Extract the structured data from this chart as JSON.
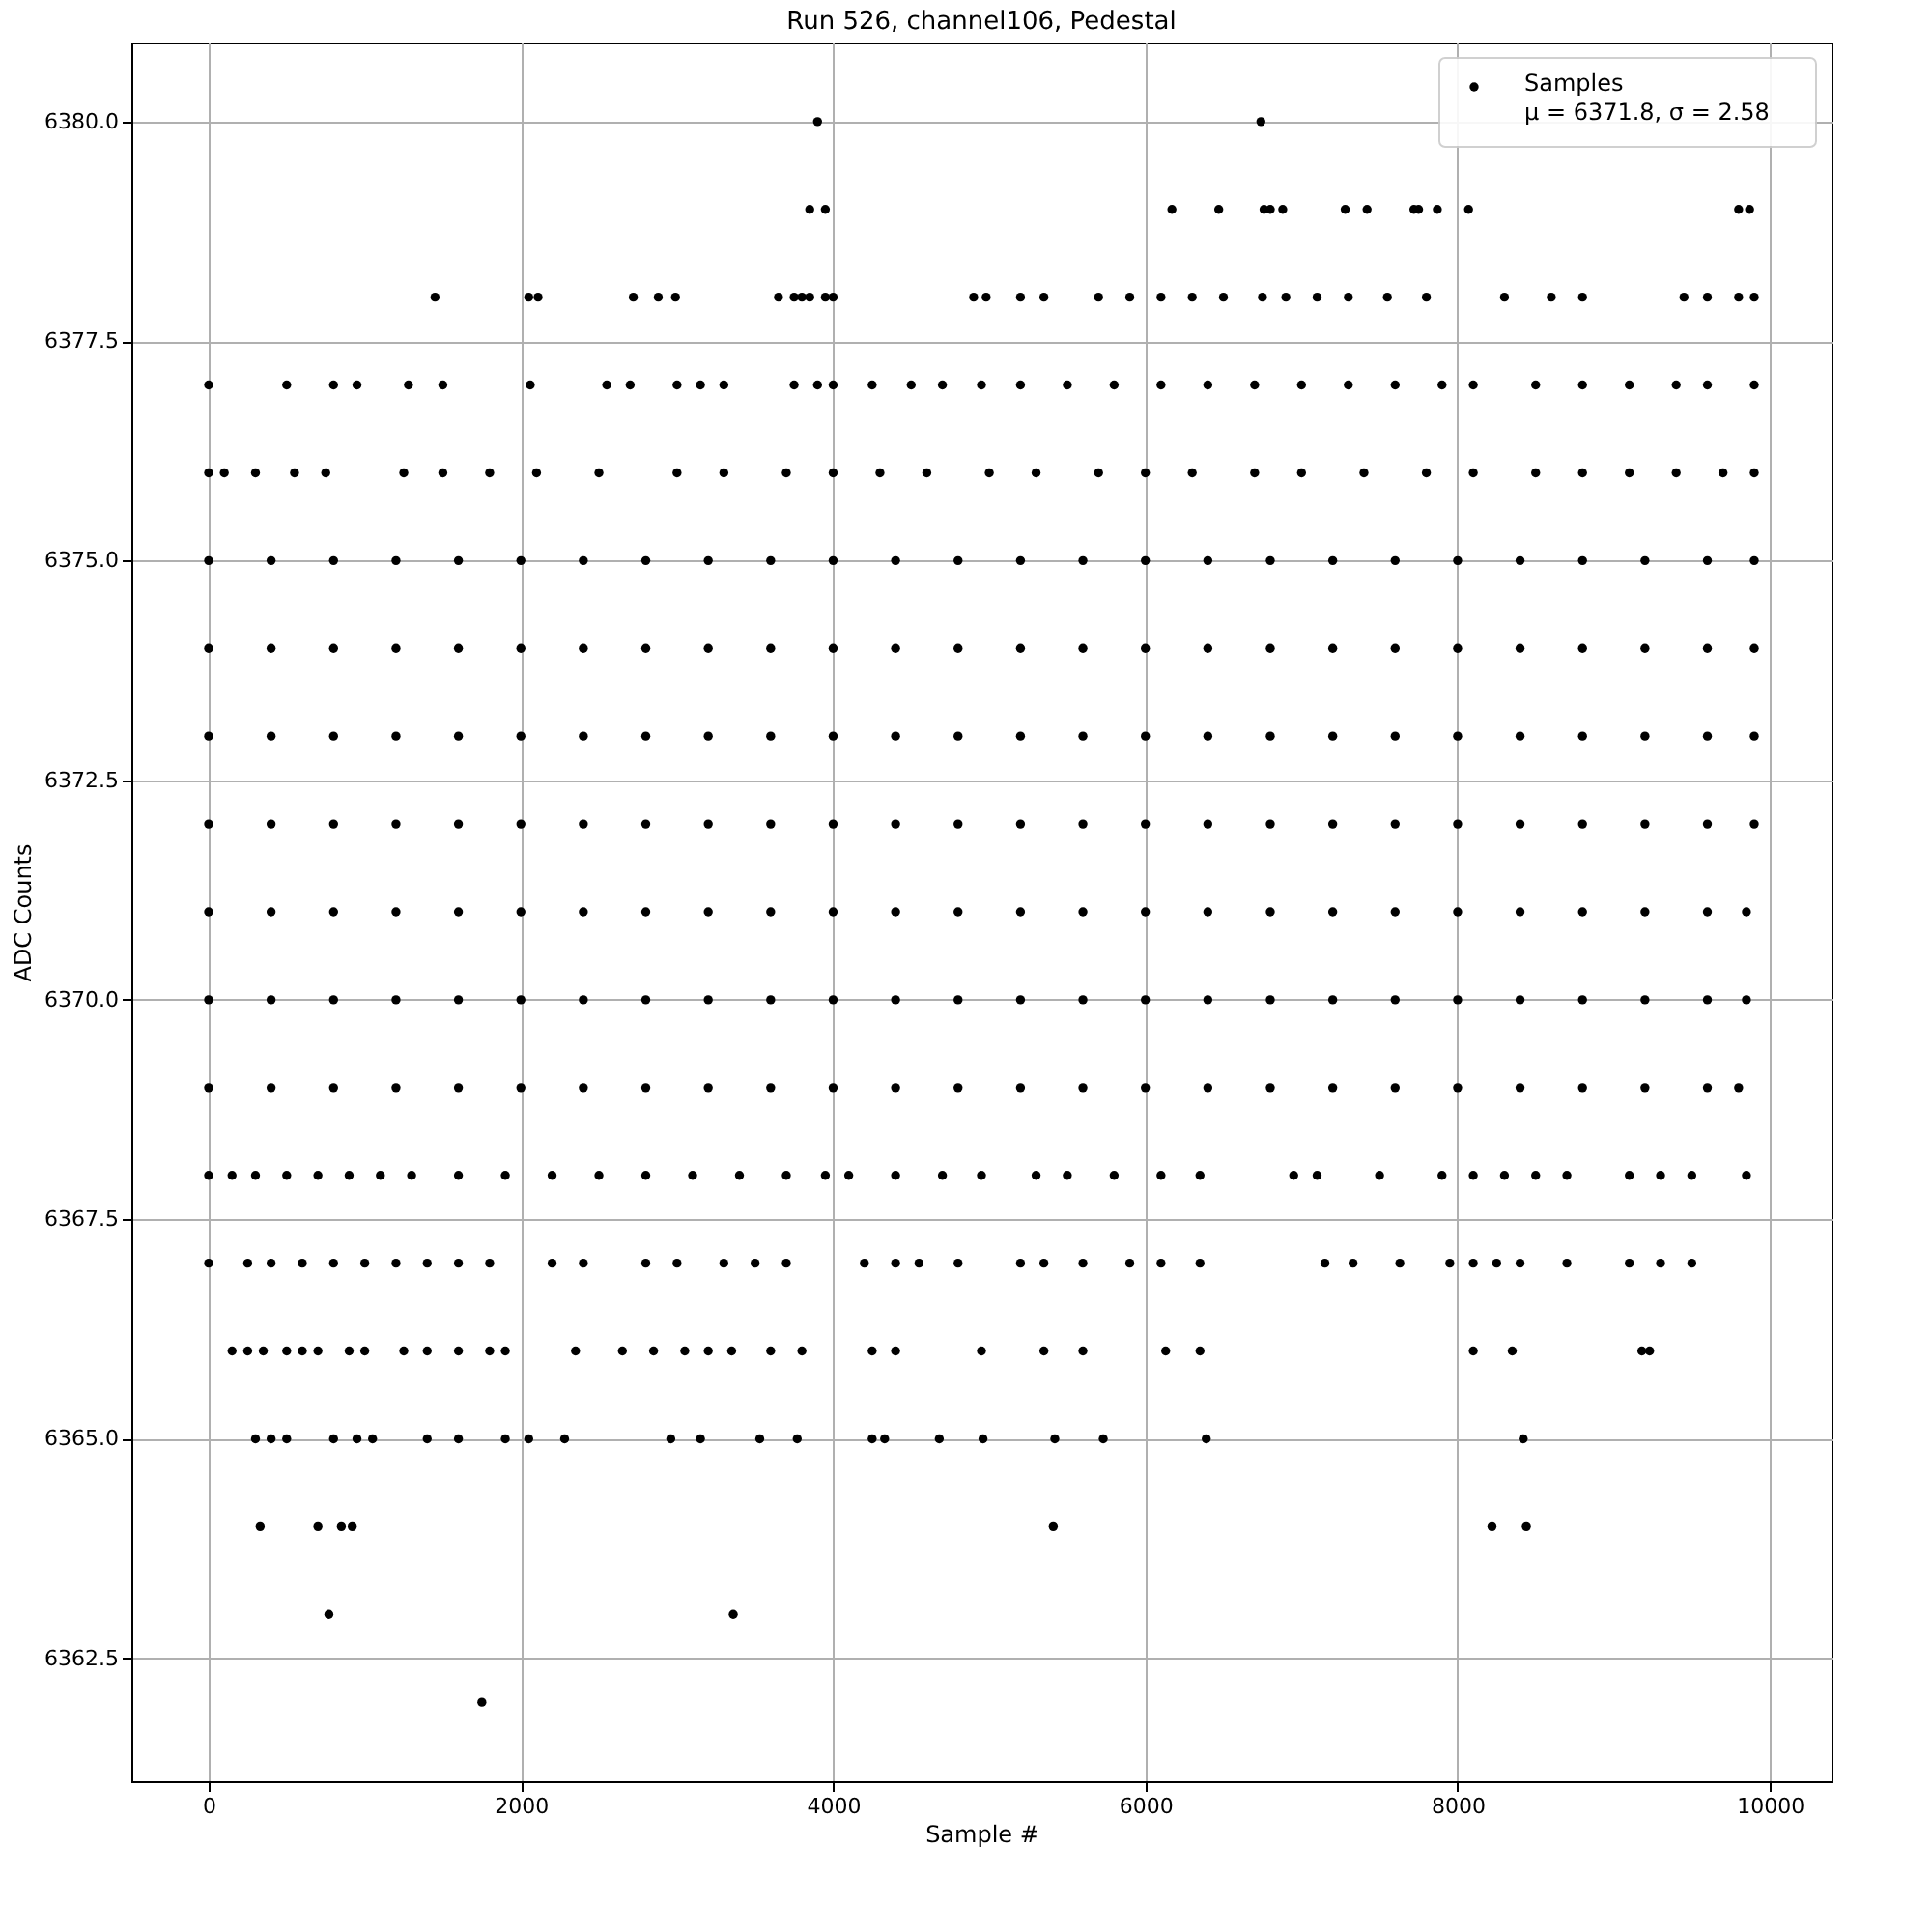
{
  "chart_data": {
    "type": "scatter",
    "title": "Run 526, channel106, Pedestal",
    "xlabel": "Sample #",
    "ylabel": "ADC Counts",
    "xlim": [
      -495,
      10395
    ],
    "ylim": [
      6361.1,
      6380.9
    ],
    "xticks": [
      0,
      2000,
      4000,
      6000,
      8000,
      10000
    ],
    "yticks": [
      {
        "value": 6362.5,
        "label": "6362.5"
      },
      {
        "value": 6365,
        "label": "6365.0"
      },
      {
        "value": 6367.5,
        "label": "6367.5"
      },
      {
        "value": 6370,
        "label": "6370.0"
      },
      {
        "value": 6372.5,
        "label": "6372.5"
      },
      {
        "value": 6375,
        "label": "6375.0"
      },
      {
        "value": 6377.5,
        "label": "6377.5"
      },
      {
        "value": 6380,
        "label": "6380.0"
      }
    ],
    "grid": true,
    "legend": "top right",
    "marker": "circle",
    "series": [
      {
        "name": "Samples\nμ = 6371.8, σ = 2.58",
        "color": "#000000",
        "x": [
          3900,
          6740,
          3850,
          3950,
          6170,
          6470,
          6760,
          6800,
          6880,
          7280,
          7420,
          7720,
          7750,
          7870,
          8070,
          9800,
          9870,
          1450,
          2050,
          2110,
          2720,
          2880,
          2990,
          3650,
          3750,
          3800,
          3850,
          3950,
          4000,
          4900,
          4980,
          5200,
          5350,
          5700,
          5900,
          6100,
          6300,
          6500,
          6750,
          6900,
          7100,
          7300,
          7550,
          7800,
          8300,
          8600,
          8800,
          9450,
          9600,
          9800,
          9900,
          0,
          500,
          800,
          950,
          1280,
          1500,
          2060,
          2550,
          2700,
          3000,
          3150,
          3300,
          3750,
          3900,
          4000,
          4250,
          4500,
          4700,
          4950,
          5200,
          5500,
          5800,
          6100,
          6400,
          6700,
          7000,
          7300,
          7600,
          7900,
          8100,
          8500,
          8800,
          9100,
          9400,
          9600,
          9900,
          0,
          100,
          300,
          550,
          750,
          1250,
          1500,
          1800,
          2100,
          2500,
          3000,
          3300,
          3700,
          4000,
          4300,
          4600,
          5000,
          5300,
          5700,
          6000,
          6300,
          6700,
          7000,
          7400,
          7800,
          8100,
          8500,
          8800,
          9100,
          9400,
          9700,
          9900,
          0,
          400,
          800,
          1200,
          1600,
          2000,
          2400,
          2800,
          3200,
          3600,
          4000,
          4400,
          4800,
          5200,
          5600,
          6000,
          6400,
          6800,
          7200,
          7600,
          8000,
          8400,
          8800,
          9200,
          9600,
          9900,
          0,
          400,
          800,
          1200,
          1600,
          2000,
          2400,
          2800,
          3200,
          3600,
          4000,
          4400,
          4800,
          5200,
          5600,
          6000,
          6400,
          6800,
          7200,
          7600,
          8000,
          8400,
          8800,
          9200,
          9600,
          9900,
          0,
          400,
          800,
          1200,
          1600,
          2000,
          2400,
          2800,
          3200,
          3600,
          4000,
          4400,
          4800,
          5200,
          5600,
          6000,
          6400,
          6800,
          7200,
          7600,
          8000,
          8400,
          8800,
          9200,
          9600,
          9900,
          0,
          400,
          800,
          1200,
          1600,
          2000,
          2400,
          2800,
          3200,
          3600,
          4000,
          4400,
          4800,
          5200,
          5600,
          6000,
          6400,
          6800,
          7200,
          7600,
          8000,
          8400,
          8800,
          9200,
          9600,
          9900,
          0,
          400,
          800,
          1200,
          1600,
          2000,
          2400,
          2800,
          3200,
          3600,
          4000,
          4400,
          4800,
          5200,
          5600,
          6000,
          6400,
          6800,
          7200,
          7600,
          8000,
          8400,
          8800,
          9200,
          9600,
          9850,
          0,
          400,
          800,
          1200,
          1600,
          2000,
          2400,
          2800,
          3200,
          3600,
          4000,
          4400,
          4800,
          5200,
          5600,
          6000,
          6400,
          6800,
          7200,
          7600,
          8000,
          8400,
          8800,
          9200,
          9600,
          9850,
          0,
          400,
          800,
          1200,
          1600,
          2000,
          2400,
          2800,
          3200,
          3600,
          4000,
          4400,
          4800,
          5200,
          5600,
          6000,
          6400,
          6800,
          7200,
          7600,
          8000,
          8400,
          8800,
          9200,
          9600,
          9800,
          0,
          150,
          300,
          500,
          700,
          900,
          1100,
          1300,
          1600,
          1900,
          2200,
          2500,
          2800,
          3100,
          3400,
          3700,
          3950,
          4100,
          4400,
          4700,
          4950,
          5300,
          5500,
          5800,
          6100,
          6350,
          6950,
          7100,
          7500,
          7900,
          8100,
          8300,
          8500,
          8700,
          9100,
          9300,
          9500,
          9850,
          0,
          250,
          400,
          600,
          800,
          1000,
          1200,
          1400,
          1600,
          1800,
          2200,
          2400,
          2800,
          3000,
          3300,
          3500,
          3700,
          4200,
          4400,
          4550,
          4800,
          5200,
          5350,
          5600,
          5900,
          6100,
          6350,
          7150,
          7330,
          7630,
          7950,
          8100,
          8250,
          8400,
          8700,
          9100,
          9300,
          9500,
          150,
          250,
          350,
          500,
          600,
          700,
          900,
          1000,
          1250,
          1400,
          1600,
          1800,
          1900,
          2350,
          2650,
          2850,
          3050,
          3200,
          3350,
          3600,
          3800,
          4250,
          4400,
          4950,
          5350,
          5600,
          6130,
          6350,
          8100,
          8350,
          9180,
          9230,
          300,
          400,
          500,
          800,
          950,
          1050,
          1400,
          1600,
          1900,
          2050,
          2280,
          2960,
          3150,
          3530,
          3770,
          4250,
          4330,
          4680,
          4960,
          5420,
          5730,
          6390,
          8420,
          330,
          700,
          850,
          920,
          5410,
          8220,
          8440,
          770,
          3360,
          1750
        ],
        "values": [
          6380,
          6380,
          6379,
          6379,
          6379,
          6379,
          6379,
          6379,
          6379,
          6379,
          6379,
          6379,
          6379,
          6379,
          6379,
          6379,
          6379,
          6378,
          6378,
          6378,
          6378,
          6378,
          6378,
          6378,
          6378,
          6378,
          6378,
          6378,
          6378,
          6378,
          6378,
          6378,
          6378,
          6378,
          6378,
          6378,
          6378,
          6378,
          6378,
          6378,
          6378,
          6378,
          6378,
          6378,
          6378,
          6378,
          6378,
          6378,
          6378,
          6378,
          6378,
          6377,
          6377,
          6377,
          6377,
          6377,
          6377,
          6377,
          6377,
          6377,
          6377,
          6377,
          6377,
          6377,
          6377,
          6377,
          6377,
          6377,
          6377,
          6377,
          6377,
          6377,
          6377,
          6377,
          6377,
          6377,
          6377,
          6377,
          6377,
          6377,
          6377,
          6377,
          6377,
          6377,
          6377,
          6377,
          6377,
          6376,
          6376,
          6376,
          6376,
          6376,
          6376,
          6376,
          6376,
          6376,
          6376,
          6376,
          6376,
          6376,
          6376,
          6376,
          6376,
          6376,
          6376,
          6376,
          6376,
          6376,
          6376,
          6376,
          6376,
          6376,
          6376,
          6376,
          6376,
          6376,
          6376,
          6376,
          6376,
          6375,
          6375,
          6375,
          6375,
          6375,
          6375,
          6375,
          6375,
          6375,
          6375,
          6375,
          6375,
          6375,
          6375,
          6375,
          6375,
          6375,
          6375,
          6375,
          6375,
          6375,
          6375,
          6375,
          6375,
          6375,
          6375,
          6374,
          6374,
          6374,
          6374,
          6374,
          6374,
          6374,
          6374,
          6374,
          6374,
          6374,
          6374,
          6374,
          6374,
          6374,
          6374,
          6374,
          6374,
          6374,
          6374,
          6374,
          6374,
          6374,
          6374,
          6374,
          6374,
          6373,
          6373,
          6373,
          6373,
          6373,
          6373,
          6373,
          6373,
          6373,
          6373,
          6373,
          6373,
          6373,
          6373,
          6373,
          6373,
          6373,
          6373,
          6373,
          6373,
          6373,
          6373,
          6373,
          6373,
          6373,
          6373,
          6372,
          6372,
          6372,
          6372,
          6372,
          6372,
          6372,
          6372,
          6372,
          6372,
          6372,
          6372,
          6372,
          6372,
          6372,
          6372,
          6372,
          6372,
          6372,
          6372,
          6372,
          6372,
          6372,
          6372,
          6372,
          6372,
          6371,
          6371,
          6371,
          6371,
          6371,
          6371,
          6371,
          6371,
          6371,
          6371,
          6371,
          6371,
          6371,
          6371,
          6371,
          6371,
          6371,
          6371,
          6371,
          6371,
          6371,
          6371,
          6371,
          6371,
          6371,
          6371,
          6370,
          6370,
          6370,
          6370,
          6370,
          6370,
          6370,
          6370,
          6370,
          6370,
          6370,
          6370,
          6370,
          6370,
          6370,
          6370,
          6370,
          6370,
          6370,
          6370,
          6370,
          6370,
          6370,
          6370,
          6370,
          6370,
          6369,
          6369,
          6369,
          6369,
          6369,
          6369,
          6369,
          6369,
          6369,
          6369,
          6369,
          6369,
          6369,
          6369,
          6369,
          6369,
          6369,
          6369,
          6369,
          6369,
          6369,
          6369,
          6369,
          6369,
          6369,
          6369,
          6368,
          6368,
          6368,
          6368,
          6368,
          6368,
          6368,
          6368,
          6368,
          6368,
          6368,
          6368,
          6368,
          6368,
          6368,
          6368,
          6368,
          6368,
          6368,
          6368,
          6368,
          6368,
          6368,
          6368,
          6368,
          6368,
          6368,
          6368,
          6368,
          6368,
          6368,
          6368,
          6368,
          6368,
          6368,
          6368,
          6368,
          6368,
          6367,
          6367,
          6367,
          6367,
          6367,
          6367,
          6367,
          6367,
          6367,
          6367,
          6367,
          6367,
          6367,
          6367,
          6367,
          6367,
          6367,
          6367,
          6367,
          6367,
          6367,
          6367,
          6367,
          6367,
          6367,
          6367,
          6367,
          6367,
          6367,
          6367,
          6367,
          6367,
          6367,
          6367,
          6367,
          6367,
          6367,
          6367,
          6366,
          6366,
          6366,
          6366,
          6366,
          6366,
          6366,
          6366,
          6366,
          6366,
          6366,
          6366,
          6366,
          6366,
          6366,
          6366,
          6366,
          6366,
          6366,
          6366,
          6366,
          6366,
          6366,
          6366,
          6366,
          6366,
          6366,
          6366,
          6366,
          6366,
          6366,
          6366,
          6365,
          6365,
          6365,
          6365,
          6365,
          6365,
          6365,
          6365,
          6365,
          6365,
          6365,
          6365,
          6365,
          6365,
          6365,
          6365,
          6365,
          6365,
          6365,
          6365,
          6365,
          6365,
          6365,
          6364,
          6364,
          6364,
          6364,
          6364,
          6364,
          6364,
          6363,
          6363,
          6362
        ]
      }
    ]
  }
}
